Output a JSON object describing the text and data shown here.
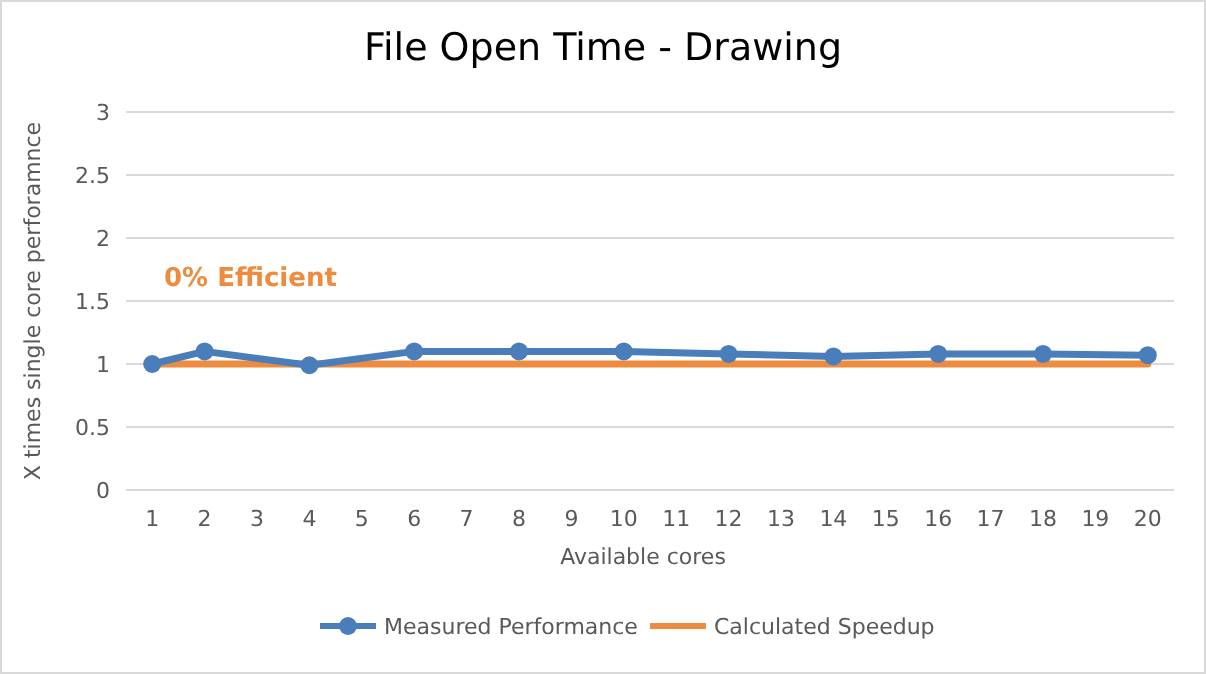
{
  "chart_data": {
    "type": "line",
    "title": "File Open Time - Drawing",
    "xlabel": "Available cores",
    "ylabel": "X times single core perforamnce",
    "annotations": [
      "0% Efficient"
    ],
    "xlim": [
      0.5,
      20.5
    ],
    "xticks": [
      1,
      2,
      3,
      4,
      5,
      6,
      7,
      8,
      9,
      10,
      11,
      12,
      13,
      14,
      15,
      16,
      17,
      18,
      19,
      20
    ],
    "ylim": [
      0,
      3
    ],
    "yticks": [
      0,
      0.5,
      1,
      1.5,
      2,
      2.5,
      3
    ],
    "grid": "y",
    "legend": "bottom",
    "line_style": "solid",
    "series": [
      {
        "name": "Measured Performance",
        "color": "#4a7ebb",
        "marker": "circle",
        "x": [
          1,
          2,
          4,
          6,
          8,
          10,
          12,
          14,
          16,
          18,
          20
        ],
        "values": [
          1.0,
          1.1,
          0.99,
          1.1,
          1.1,
          1.1,
          1.08,
          1.06,
          1.08,
          1.08,
          1.07
        ]
      },
      {
        "name": "Calculated Speedup",
        "color": "#ed8b3e",
        "marker": "none",
        "x": [
          1,
          20
        ],
        "values": [
          1,
          1
        ]
      }
    ]
  }
}
